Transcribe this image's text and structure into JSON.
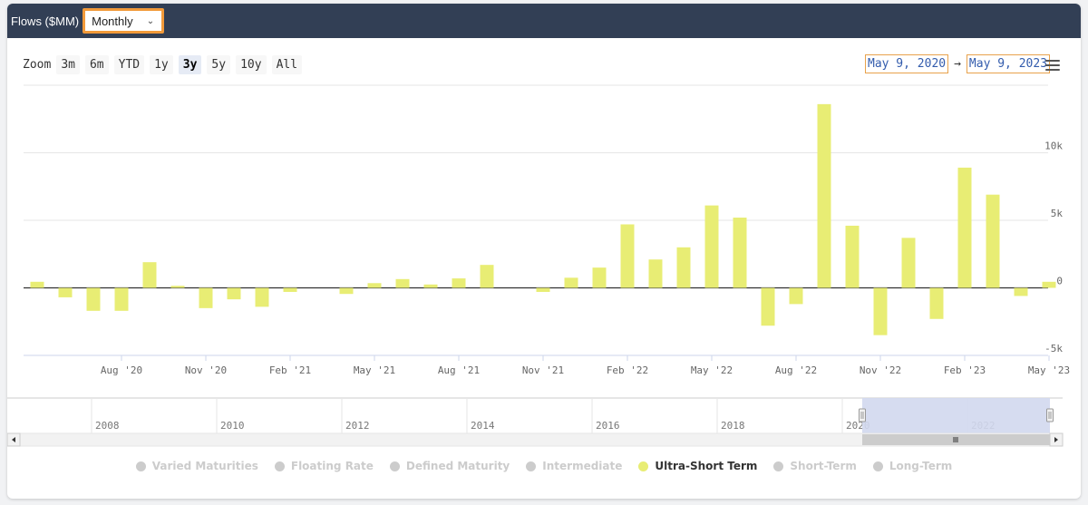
{
  "header": {
    "title": "Flows ($MM)",
    "period": "Monthly"
  },
  "zoom": {
    "label": "Zoom",
    "buttons": [
      "3m",
      "6m",
      "YTD",
      "1y",
      "3y",
      "5y",
      "10y",
      "All"
    ],
    "active": "3y"
  },
  "range": {
    "from": "May 9, 2020",
    "to": "May 9, 2023",
    "arrow": "→"
  },
  "colors": {
    "bar": "#e8ed74",
    "navigator_selection": "#d2d8ee",
    "legend_inactive": "#cccccc"
  },
  "legend": [
    {
      "label": "Varied Maturities",
      "active": false,
      "color": "#cccccc"
    },
    {
      "label": "Floating Rate",
      "active": false,
      "color": "#cccccc"
    },
    {
      "label": "Defined Maturity",
      "active": false,
      "color": "#cccccc"
    },
    {
      "label": "Intermediate",
      "active": false,
      "color": "#cccccc"
    },
    {
      "label": "Ultra-Short Term",
      "active": true,
      "color": "#e8ed74"
    },
    {
      "label": "Short-Term",
      "active": false,
      "color": "#cccccc"
    },
    {
      "label": "Long-Term",
      "active": false,
      "color": "#cccccc"
    }
  ],
  "chart_data": {
    "type": "bar",
    "title": "",
    "xlabel": "",
    "ylabel": "",
    "ylim": [
      -5000,
      15000
    ],
    "yticks": [
      -5000,
      0,
      5000,
      10000
    ],
    "ytick_labels": [
      "-5k",
      "0",
      "5k",
      "10k"
    ],
    "xticks": [
      {
        "label": "Aug '20",
        "month": "2020-08"
      },
      {
        "label": "Nov '20",
        "month": "2020-11"
      },
      {
        "label": "Feb '21",
        "month": "2021-02"
      },
      {
        "label": "May '21",
        "month": "2021-05"
      },
      {
        "label": "Aug '21",
        "month": "2021-08"
      },
      {
        "label": "Nov '21",
        "month": "2021-11"
      },
      {
        "label": "Feb '22",
        "month": "2022-02"
      },
      {
        "label": "May '22",
        "month": "2022-05"
      },
      {
        "label": "Aug '22",
        "month": "2022-08"
      },
      {
        "label": "Nov '22",
        "month": "2022-11"
      },
      {
        "label": "Feb '23",
        "month": "2023-02"
      },
      {
        "label": "May '23",
        "month": "2023-05"
      }
    ],
    "series": [
      {
        "name": "Ultra-Short Term",
        "months": [
          "2020-05",
          "2020-06",
          "2020-07",
          "2020-08",
          "2020-09",
          "2020-10",
          "2020-11",
          "2020-12",
          "2021-01",
          "2021-02",
          "2021-03",
          "2021-04",
          "2021-05",
          "2021-06",
          "2021-07",
          "2021-08",
          "2021-09",
          "2021-10",
          "2021-11",
          "2021-12",
          "2022-01",
          "2022-02",
          "2022-03",
          "2022-04",
          "2022-05",
          "2022-06",
          "2022-07",
          "2022-08",
          "2022-09",
          "2022-10",
          "2022-11",
          "2022-12",
          "2023-01",
          "2023-02",
          "2023-03",
          "2023-04",
          "2023-05"
        ],
        "values": [
          450,
          -700,
          -1700,
          -1700,
          1900,
          150,
          -1500,
          -850,
          -1400,
          -300,
          0,
          -450,
          350,
          650,
          250,
          700,
          1700,
          0,
          -300,
          750,
          1500,
          4700,
          2100,
          3000,
          6100,
          5200,
          -2800,
          -1200,
          13600,
          4600,
          -3500,
          3700,
          -2300,
          8900,
          6900,
          -600,
          450
        ]
      }
    ],
    "navigator": {
      "ticks": [
        "2008",
        "2010",
        "2012",
        "2014",
        "2016",
        "2018",
        "2020",
        "2022"
      ]
    }
  }
}
